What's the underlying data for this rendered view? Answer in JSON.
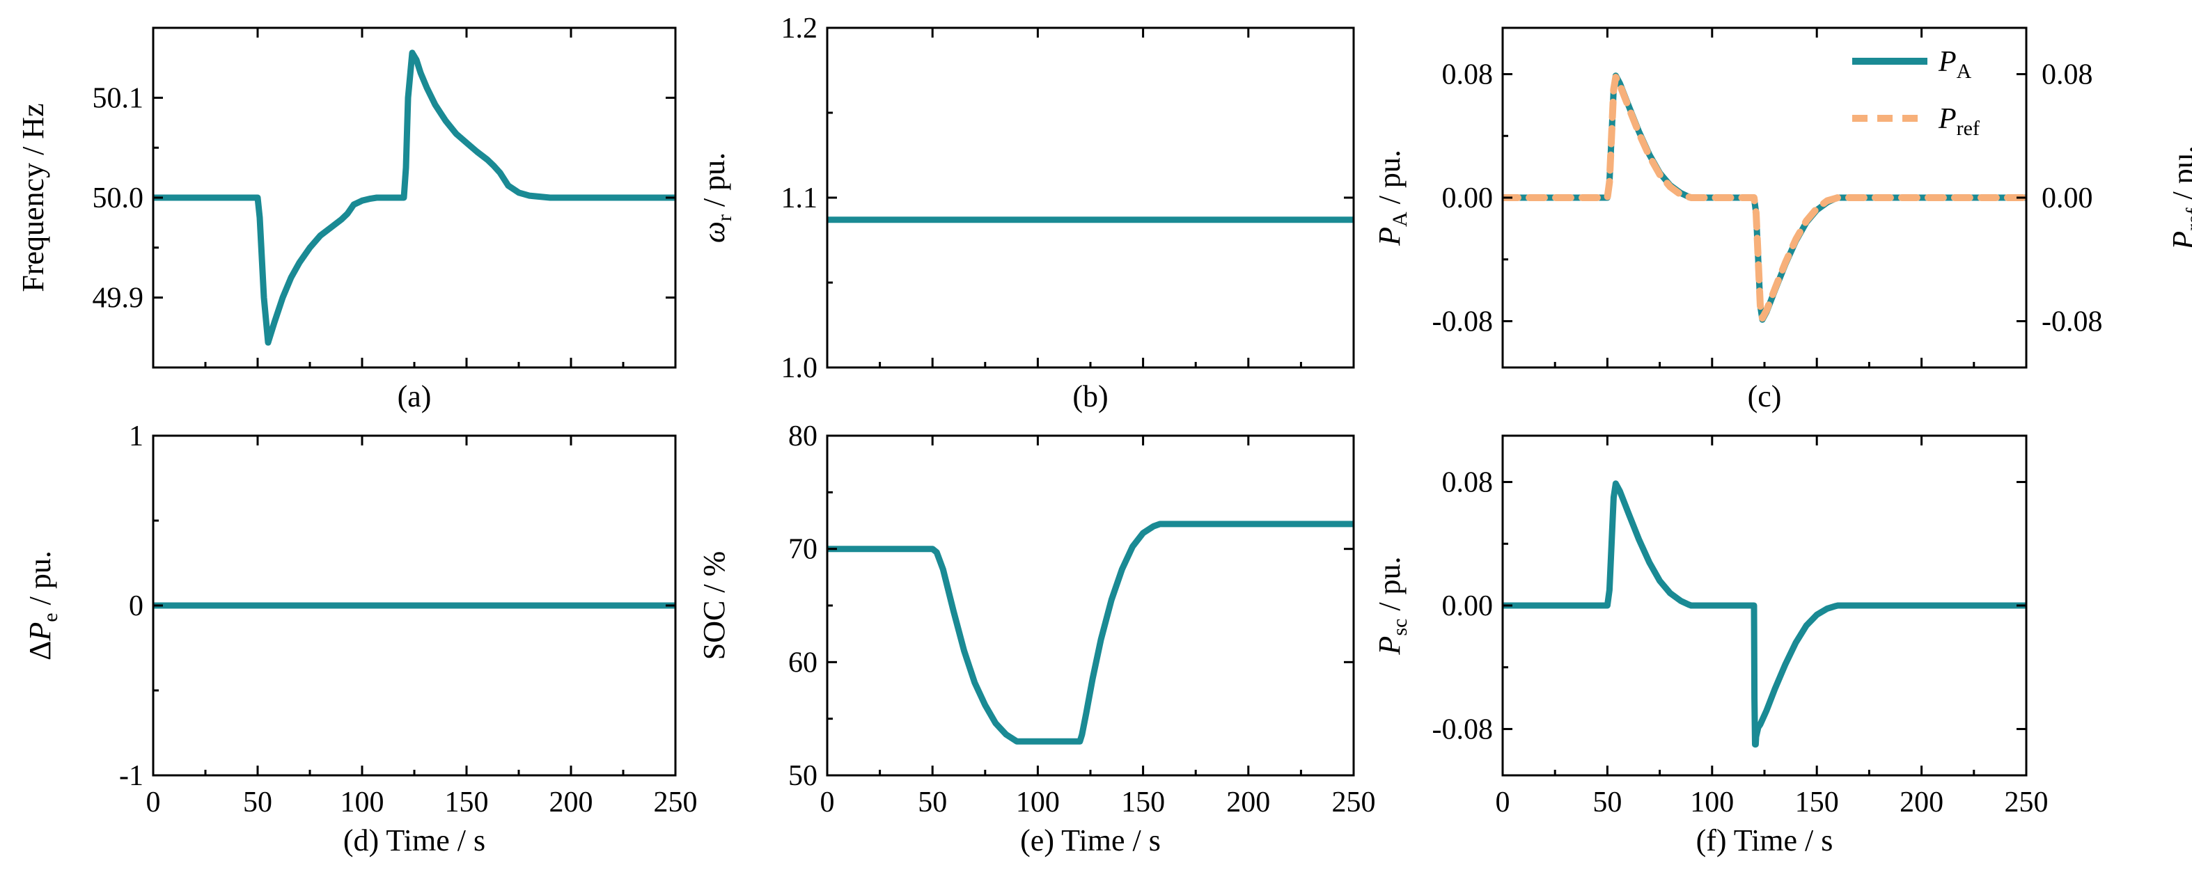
{
  "figure": {
    "colors": {
      "primary": "#1a8a94",
      "secondary": "#f7b07a",
      "axis": "#000000"
    },
    "xlabel_common": "Time / s"
  },
  "chart_data": [
    {
      "id": "a",
      "type": "line",
      "caption": "(a)",
      "ylabel": "Frequency / Hz",
      "xlim": [
        0,
        250
      ],
      "ylim": [
        49.83,
        50.17
      ],
      "xticks": [
        0,
        50,
        100,
        150,
        200,
        250
      ],
      "show_xticklabels": false,
      "yticks": [
        49.9,
        50.0,
        50.1
      ],
      "yticklabels": [
        "49.9",
        "50.0",
        "50.1"
      ],
      "series": [
        {
          "name": "Frequency",
          "color": "#1a8a94",
          "style": "solid",
          "x": [
            0,
            50,
            51,
            53,
            55,
            58,
            62,
            66,
            70,
            75,
            80,
            85,
            90,
            93,
            96,
            100,
            104,
            107,
            110,
            115,
            120,
            121,
            122,
            124,
            126,
            128,
            131,
            135,
            140,
            145,
            150,
            155,
            160,
            163,
            166,
            170,
            175,
            180,
            190,
            200,
            250
          ],
          "y": [
            50.0,
            50.0,
            49.98,
            49.9,
            49.855,
            49.875,
            49.9,
            49.92,
            49.935,
            49.95,
            49.962,
            49.97,
            49.978,
            49.984,
            49.993,
            49.997,
            49.999,
            50.0,
            50.0,
            50.0,
            50.0,
            50.03,
            50.1,
            50.145,
            50.138,
            50.125,
            50.11,
            50.093,
            50.077,
            50.064,
            50.055,
            50.046,
            50.038,
            50.032,
            50.025,
            50.012,
            50.005,
            50.002,
            50.0,
            50.0,
            50.0
          ]
        }
      ]
    },
    {
      "id": "b",
      "type": "line",
      "caption": "(b)",
      "ylabel_symbol": "ω",
      "ylabel_sub": "r",
      "ylabel_rest": " / pu.",
      "xlim": [
        0,
        250
      ],
      "ylim": [
        1.0,
        1.2
      ],
      "xticks": [
        0,
        50,
        100,
        150,
        200,
        250
      ],
      "show_xticklabels": false,
      "yticks": [
        1.0,
        1.1,
        1.2
      ],
      "yticklabels": [
        "1.0",
        "1.1",
        "1.2"
      ],
      "series": [
        {
          "name": "ωr",
          "color": "#1a8a94",
          "style": "solid",
          "x": [
            0,
            250
          ],
          "y": [
            1.087,
            1.087
          ]
        }
      ]
    },
    {
      "id": "c",
      "type": "line",
      "caption": "(c)",
      "ylabel_symbol": "P",
      "ylabel_sub": "A",
      "ylabel_rest": " / pu.",
      "ylabel_right_symbol": "P",
      "ylabel_right_sub": "ref",
      "ylabel_right_rest": " / pu.",
      "xlim": [
        0,
        250
      ],
      "ylim": [
        -0.11,
        0.11
      ],
      "xticks": [
        0,
        50,
        100,
        150,
        200,
        250
      ],
      "show_xticklabels": false,
      "yticks": [
        -0.08,
        0.0,
        0.08
      ],
      "yticklabels": [
        "-0.08",
        "0.00",
        "0.08"
      ],
      "legend": {
        "position": "top-right",
        "entries": [
          {
            "symbol": "P",
            "sub": "A",
            "color": "#1a8a94",
            "style": "solid"
          },
          {
            "symbol": "P",
            "sub": "ref",
            "color": "#f7b07a",
            "style": "dashed"
          }
        ]
      },
      "series": [
        {
          "name": "PA",
          "color": "#1a8a94",
          "style": "solid",
          "x": [
            0,
            50,
            51,
            52,
            53,
            54,
            56,
            60,
            65,
            70,
            75,
            80,
            85,
            89,
            90,
            120,
            121,
            122,
            123,
            124,
            126,
            130,
            135,
            140,
            145,
            150,
            155,
            159,
            160,
            250
          ],
          "y": [
            0,
            0,
            0.01,
            0.04,
            0.07,
            0.079,
            0.074,
            0.06,
            0.043,
            0.028,
            0.016,
            0.008,
            0.003,
            0.0005,
            0,
            0,
            -0.01,
            -0.04,
            -0.07,
            -0.079,
            -0.074,
            -0.06,
            -0.043,
            -0.028,
            -0.016,
            -0.008,
            -0.003,
            -0.0005,
            0,
            0
          ]
        },
        {
          "name": "Pref",
          "color": "#f7b07a",
          "style": "dashed",
          "x": [
            0,
            50,
            51,
            52,
            53,
            54,
            56,
            60,
            65,
            70,
            75,
            80,
            85,
            89,
            90,
            120,
            121,
            122,
            123,
            124,
            126,
            130,
            135,
            140,
            145,
            150,
            155,
            159,
            160,
            250
          ],
          "y": [
            0,
            0,
            0.01,
            0.04,
            0.07,
            0.078,
            0.073,
            0.059,
            0.042,
            0.027,
            0.015,
            0.007,
            0.002,
            0.0004,
            0,
            0,
            -0.01,
            -0.04,
            -0.07,
            -0.078,
            -0.073,
            -0.059,
            -0.042,
            -0.027,
            -0.015,
            -0.007,
            -0.002,
            -0.0004,
            0,
            0
          ]
        }
      ]
    },
    {
      "id": "d",
      "type": "line",
      "caption": "(d) Time / s",
      "ylabel_prefix": "Δ",
      "ylabel_symbol": "P",
      "ylabel_sub": "e",
      "ylabel_rest": " / pu.",
      "xlim": [
        0,
        250
      ],
      "ylim": [
        -1,
        1
      ],
      "xticks": [
        0,
        50,
        100,
        150,
        200,
        250
      ],
      "xticklabels": [
        "0",
        "50",
        "100",
        "150",
        "200",
        "250"
      ],
      "show_xticklabels": true,
      "yticks": [
        -1,
        0,
        1
      ],
      "yticklabels": [
        "-1",
        "0",
        "1"
      ],
      "series": [
        {
          "name": "ΔPe",
          "color": "#1a8a94",
          "style": "solid",
          "x": [
            0,
            250
          ],
          "y": [
            0,
            0
          ]
        }
      ]
    },
    {
      "id": "e",
      "type": "line",
      "caption": "(e) Time / s",
      "ylabel": "SOC / %",
      "xlim": [
        0,
        250
      ],
      "ylim": [
        50,
        80
      ],
      "xticks": [
        0,
        50,
        100,
        150,
        200,
        250
      ],
      "xticklabels": [
        "0",
        "50",
        "100",
        "150",
        "200",
        "250"
      ],
      "show_xticklabels": true,
      "yticks": [
        50,
        60,
        70,
        80
      ],
      "yticklabels": [
        "50",
        "60",
        "70",
        "80"
      ],
      "series": [
        {
          "name": "SOC",
          "color": "#1a8a94",
          "style": "solid",
          "x": [
            0,
            50,
            52,
            55,
            60,
            65,
            70,
            75,
            80,
            85,
            90,
            100,
            110,
            119,
            120,
            121,
            123,
            126,
            130,
            135,
            140,
            145,
            150,
            155,
            158,
            160,
            250
          ],
          "y": [
            70,
            70,
            69.7,
            68.2,
            64.5,
            61,
            58.2,
            56.2,
            54.6,
            53.6,
            53,
            53,
            53,
            53,
            53,
            53.6,
            55.5,
            58.5,
            62,
            65.5,
            68.2,
            70.2,
            71.4,
            72,
            72.2,
            72.2,
            72.2
          ]
        }
      ]
    },
    {
      "id": "f",
      "type": "line",
      "caption": "(f) Time / s",
      "ylabel_symbol": "P",
      "ylabel_sub": "sc",
      "ylabel_rest": " / pu.",
      "xlim": [
        0,
        250
      ],
      "ylim": [
        -0.11,
        0.11
      ],
      "xticks": [
        0,
        50,
        100,
        150,
        200,
        250
      ],
      "xticklabels": [
        "0",
        "50",
        "100",
        "150",
        "200",
        "250"
      ],
      "show_xticklabels": true,
      "yticks": [
        -0.08,
        0.0,
        0.08
      ],
      "yticklabels": [
        "-0.08",
        "0.00",
        "0.08"
      ],
      "series": [
        {
          "name": "Psc",
          "color": "#1a8a94",
          "style": "solid",
          "x": [
            0,
            50,
            51,
            52,
            53,
            54,
            56,
            60,
            65,
            70,
            75,
            80,
            85,
            89,
            90,
            120,
            120.2,
            120.5,
            120.8,
            121,
            122,
            123,
            124,
            126,
            130,
            135,
            140,
            145,
            150,
            155,
            159,
            160,
            250
          ],
          "y": [
            0,
            0,
            0.01,
            0.04,
            0.07,
            0.079,
            0.074,
            0.06,
            0.043,
            0.028,
            0.016,
            0.008,
            0.003,
            0.0005,
            0,
            0,
            -0.06,
            -0.09,
            -0.09,
            -0.085,
            -0.079,
            -0.077,
            -0.074,
            -0.068,
            -0.054,
            -0.038,
            -0.024,
            -0.013,
            -0.006,
            -0.002,
            -0.0003,
            0,
            0
          ]
        }
      ]
    }
  ]
}
